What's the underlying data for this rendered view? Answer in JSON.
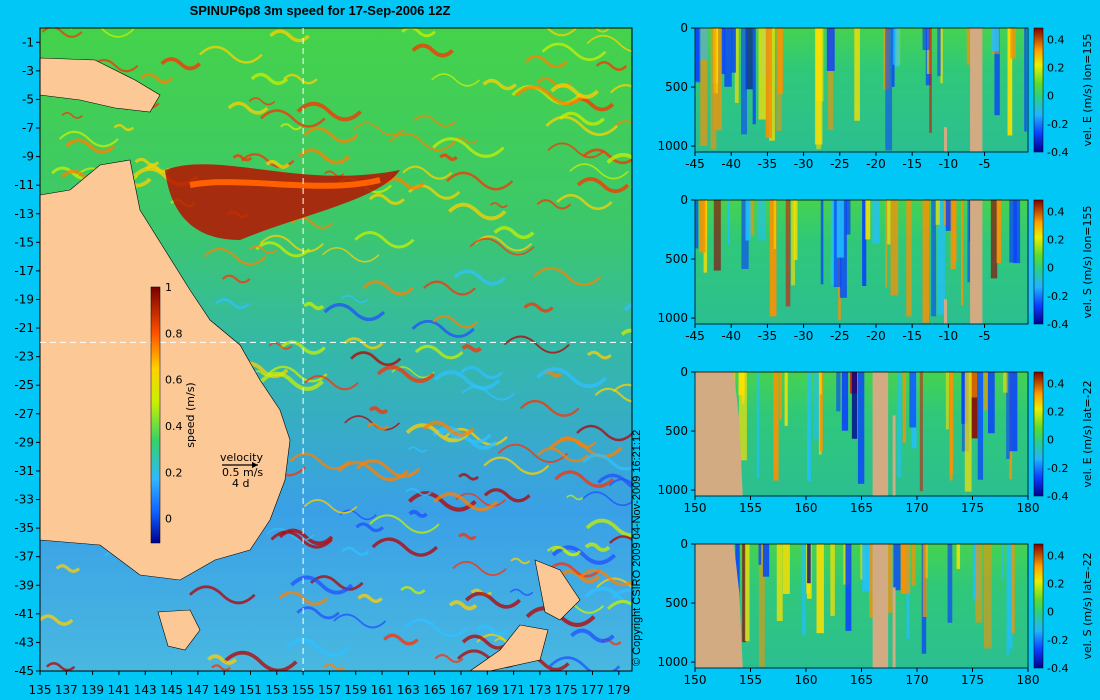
{
  "title": "SPINUP6p8 3m speed for 17-Sep-2006 12Z",
  "copyright": "© Copyright CSIRO 2009   04-Nov-2009 16:21:12",
  "map": {
    "colorbar_label": "speed (m/s)",
    "colorbar_ticks": [
      "0",
      "0.2",
      "0.4",
      "0.6",
      "0.8",
      "1"
    ],
    "velocity_legend": [
      "velocity",
      "0.5 m/s",
      "4 d"
    ],
    "x_ticks": [
      "135",
      "137",
      "139",
      "141",
      "143",
      "145",
      "147",
      "149",
      "151",
      "153",
      "155",
      "157",
      "159",
      "161",
      "163",
      "165",
      "167",
      "169",
      "171",
      "173",
      "175",
      "177",
      "179"
    ],
    "y_ticks": [
      "-1",
      "-3",
      "-5",
      "-7",
      "-9",
      "-11",
      "-13",
      "-15",
      "-17",
      "-19",
      "-21",
      "-23",
      "-25",
      "-27",
      "-29",
      "-31",
      "-33",
      "-35",
      "-37",
      "-39",
      "-41",
      "-43",
      "-45"
    ],
    "section_lon": 155,
    "section_lat": -22
  },
  "chart_data": [
    {
      "type": "heatmap",
      "title": "",
      "xlabel": "",
      "ylabel": "",
      "colorbar_label": "vel. E (m/s) lon=155",
      "x_ticks": [
        "-45",
        "-40",
        "-35",
        "-30",
        "-25",
        "-20",
        "-15",
        "-10",
        "-5"
      ],
      "y_ticks": [
        "0",
        "500",
        "1000"
      ],
      "colorbar_ticks": [
        "0.4",
        "0.2",
        "0",
        "-0.2",
        "-0.4"
      ],
      "xlim": [
        -45,
        1
      ],
      "ylim": [
        1050,
        0
      ],
      "clim": [
        -0.4,
        0.48
      ]
    },
    {
      "type": "heatmap",
      "title": "",
      "xlabel": "",
      "ylabel": "",
      "colorbar_label": "vel. S (m/s) lon=155",
      "x_ticks": [
        "-45",
        "-40",
        "-35",
        "-30",
        "-25",
        "-20",
        "-15",
        "-10",
        "-5"
      ],
      "y_ticks": [
        "0",
        "500",
        "1000"
      ],
      "colorbar_ticks": [
        "0.4",
        "0.2",
        "0",
        "-0.2",
        "-0.4"
      ],
      "xlim": [
        -45,
        1
      ],
      "ylim": [
        1050,
        0
      ],
      "clim": [
        -0.4,
        0.48
      ]
    },
    {
      "type": "heatmap",
      "title": "",
      "xlabel": "",
      "ylabel": "",
      "colorbar_label": "vel. E (m/s) lat=-22",
      "x_ticks": [
        "150",
        "155",
        "160",
        "165",
        "170",
        "175",
        "180"
      ],
      "y_ticks": [
        "0",
        "500",
        "1000"
      ],
      "colorbar_ticks": [
        "0.4",
        "0.2",
        "0",
        "-0.2",
        "-0.4"
      ],
      "xlim": [
        150,
        180
      ],
      "ylim": [
        1050,
        0
      ],
      "clim": [
        -0.4,
        0.48
      ]
    },
    {
      "type": "heatmap",
      "title": "",
      "xlabel": "",
      "ylabel": "",
      "colorbar_label": "vel. S (m/s) lat=-22",
      "x_ticks": [
        "150",
        "155",
        "160",
        "165",
        "170",
        "175",
        "180"
      ],
      "y_ticks": [
        "0",
        "500",
        "1000"
      ],
      "colorbar_ticks": [
        "0.4",
        "0.2",
        "0",
        "-0.2",
        "-0.4"
      ],
      "xlim": [
        150,
        180
      ],
      "ylim": [
        1050,
        0
      ],
      "clim": [
        -0.4,
        0.48
      ]
    }
  ]
}
